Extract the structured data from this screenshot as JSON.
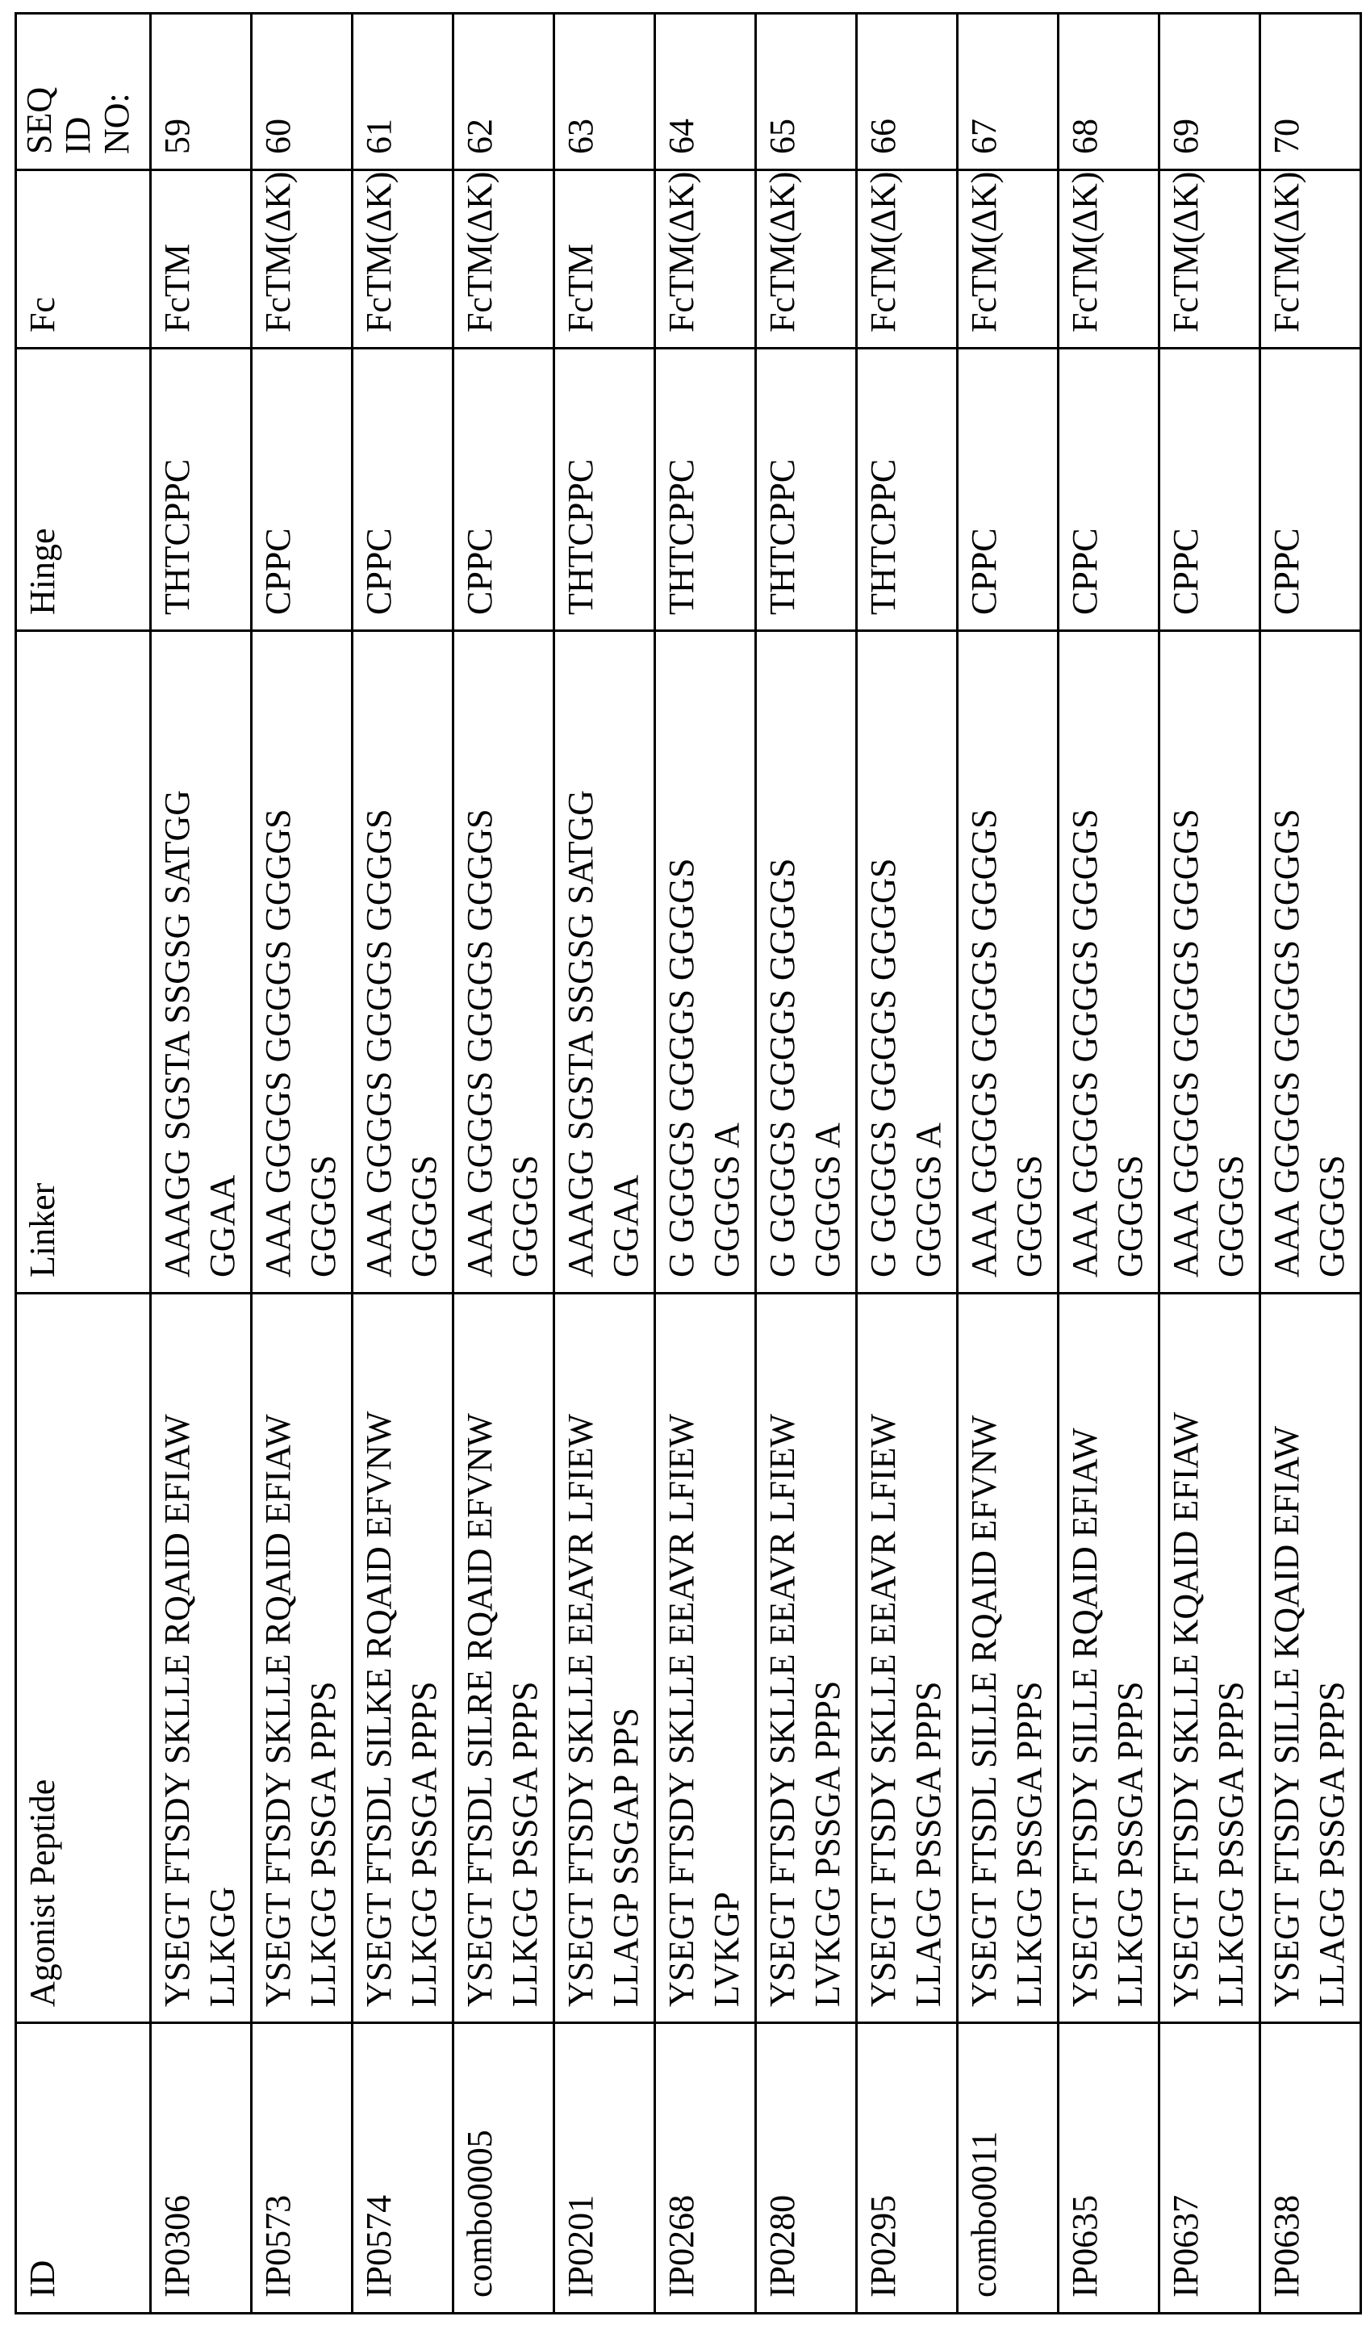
{
  "table": {
    "headers": {
      "id": "ID",
      "peptide": "Agonist Peptide",
      "linker": "Linker",
      "hinge": "Hinge",
      "fc": "Fc",
      "seq": "SEQ ID NO:"
    },
    "rows": [
      {
        "id": "IP0306",
        "peptide": "YSEGT FTSDY SKLLE RQAID EFIAW\nLLKGG",
        "linker": "AAAGG SGSTA SSGSG SATGG\nGGAA",
        "hinge": "THTCPPC",
        "fc": "FcTM",
        "seq": "59"
      },
      {
        "id": "IP0573",
        "peptide": "YSEGT FTSDY SKLLE RQAID EFIAW\nLLKGG PSSGA PPPS",
        "linker": "AAA GGGGS GGGGS GGGGS\nGGGGS",
        "hinge": "CPPC",
        "fc": "FcTM(ΔK)",
        "seq": "60"
      },
      {
        "id": "IP0574",
        "peptide": "YSEGT FTSDL SILKE RQAID EFVNW\nLLKGG PSSGA PPPS",
        "linker": "AAA GGGGS GGGGS GGGGS\nGGGGS",
        "hinge": "CPPC",
        "fc": "FcTM(ΔK)",
        "seq": "61"
      },
      {
        "id": "combo0005",
        "peptide": "YSEGT FTSDL SILRE RQAID EFVNW\nLLKGG PSSGA PPPS",
        "linker": "AAA GGGGS GGGGS GGGGS\nGGGGS",
        "hinge": "CPPC",
        "fc": "FcTM(ΔK)",
        "seq": "62"
      },
      {
        "id": "IP0201",
        "peptide": "YSEGT FTSDY SKLLE EEAVR LFIEW\nLLAGP SSGAP PPS",
        "linker": "AAAGG SGSTA SSGSG SATGG\nGGAA",
        "hinge": "THTCPPC",
        "fc": "FcTM",
        "seq": "63"
      },
      {
        "id": "IP0268",
        "peptide": "YSEGT FTSDY SKLLE EEAVR LFIEW\nLVKGP",
        "linker": "G GGGGS GGGGS GGGGS\nGGGGS A",
        "hinge": "THTCPPC",
        "fc": "FcTM(ΔK)",
        "seq": "64"
      },
      {
        "id": "IP0280",
        "peptide": "YSEGT FTSDY SKLLE EEAVR LFIEW\nLVKGG PSSGA PPPS",
        "linker": "G GGGGS GGGGS GGGGS\nGGGGS A",
        "hinge": "THTCPPC",
        "fc": "FcTM(ΔK)",
        "seq": "65"
      },
      {
        "id": "IP0295",
        "peptide": "YSEGT FTSDY SKLLE EEAVR LFIEW\nLLAGG PSSGA PPPS",
        "linker": "G GGGGS GGGGS GGGGS\nGGGGS A",
        "hinge": "THTCPPC",
        "fc": "FcTM(ΔK)",
        "seq": "66"
      },
      {
        "id": "combo0011",
        "peptide": "YSEGT FTSDL SILLE RQAID EFVNW\nLLKGG PSSGA PPPS",
        "linker": "AAA GGGGS GGGGS GGGGS\nGGGGS",
        "hinge": "CPPC",
        "fc": "FcTM(ΔK)",
        "seq": "67"
      },
      {
        "id": "IP0635",
        "peptide": "YSEGT FTSDY SILLE RQAID EFIAW\nLLKGG PSSGA PPPS",
        "linker": "AAA GGGGS GGGGS GGGGS\nGGGGS",
        "hinge": "CPPC",
        "fc": "FcTM(ΔK)",
        "seq": "68"
      },
      {
        "id": "IP0637",
        "peptide": "YSEGT FTSDY SKLLE KQAID EFIAW\nLLKGG PSSGA PPPS",
        "linker": "AAA GGGGS GGGGS GGGGS\nGGGGS",
        "hinge": "CPPC",
        "fc": "FcTM(ΔK)",
        "seq": "69"
      },
      {
        "id": "IP0638",
        "peptide": "YSEGT FTSDY SILLE KQAID EFIAW\nLLAGG PSSGA PPPS",
        "linker": "AAA GGGGS GGGGS GGGGS\nGGGGS",
        "hinge": "CPPC",
        "fc": "FcTM(ΔK)",
        "seq": "70"
      }
    ]
  }
}
